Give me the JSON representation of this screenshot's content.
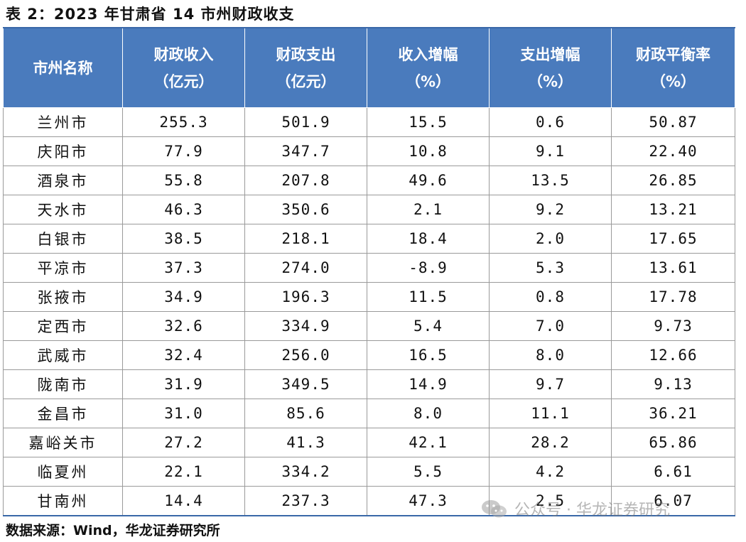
{
  "title": "表 2：2023 年甘肃省 14 市州财政收支",
  "headers": [
    {
      "line1": "市州名称",
      "line2": ""
    },
    {
      "line1": "财政收入",
      "line2": "（亿元）"
    },
    {
      "line1": "财政支出",
      "line2": "（亿元）"
    },
    {
      "line1": "收入增幅",
      "line2": "（%）"
    },
    {
      "line1": "支出增幅",
      "line2": "（%）"
    },
    {
      "line1": "财政平衡率",
      "line2": "（%）"
    }
  ],
  "rows": [
    {
      "city": "兰州市",
      "income": "255.3",
      "expense": "501.9",
      "income_growth": "15.5",
      "expense_growth": "0.6",
      "balance_rate": "50.87"
    },
    {
      "city": "庆阳市",
      "income": "77.9",
      "expense": "347.7",
      "income_growth": "10.8",
      "expense_growth": "9.1",
      "balance_rate": "22.40"
    },
    {
      "city": "酒泉市",
      "income": "55.8",
      "expense": "207.8",
      "income_growth": "49.6",
      "expense_growth": "13.5",
      "balance_rate": "26.85"
    },
    {
      "city": "天水市",
      "income": "46.3",
      "expense": "350.6",
      "income_growth": "2.1",
      "expense_growth": "9.2",
      "balance_rate": "13.21"
    },
    {
      "city": "白银市",
      "income": "38.5",
      "expense": "218.1",
      "income_growth": "18.4",
      "expense_growth": "2.0",
      "balance_rate": "17.65"
    },
    {
      "city": "平凉市",
      "income": "37.3",
      "expense": "274.0",
      "income_growth": "-8.9",
      "expense_growth": "5.3",
      "balance_rate": "13.61"
    },
    {
      "city": "张掖市",
      "income": "34.9",
      "expense": "196.3",
      "income_growth": "11.5",
      "expense_growth": "0.8",
      "balance_rate": "17.78"
    },
    {
      "city": "定西市",
      "income": "32.6",
      "expense": "334.9",
      "income_growth": "5.4",
      "expense_growth": "7.0",
      "balance_rate": "9.73"
    },
    {
      "city": "武威市",
      "income": "32.4",
      "expense": "256.0",
      "income_growth": "16.5",
      "expense_growth": "8.0",
      "balance_rate": "12.66"
    },
    {
      "city": "陇南市",
      "income": "31.9",
      "expense": "349.5",
      "income_growth": "14.9",
      "expense_growth": "9.7",
      "balance_rate": "9.13"
    },
    {
      "city": "金昌市",
      "income": "31.0",
      "expense": "85.6",
      "income_growth": "8.0",
      "expense_growth": "11.1",
      "balance_rate": "36.21"
    },
    {
      "city": "嘉峪关市",
      "income": "27.2",
      "expense": "41.3",
      "income_growth": "42.1",
      "expense_growth": "28.2",
      "balance_rate": "65.86"
    },
    {
      "city": "临夏州",
      "income": "22.1",
      "expense": "334.2",
      "income_growth": "5.5",
      "expense_growth": "4.2",
      "balance_rate": "6.61"
    },
    {
      "city": "甘南州",
      "income": "14.4",
      "expense": "237.3",
      "income_growth": "47.3",
      "expense_growth": "2.5",
      "balance_rate": "6.07"
    }
  ],
  "source": "数据来源：Wind，华龙证券研究所",
  "watermark": {
    "text": "公众号 · 华龙证券研究",
    "icon": "wechat-icon"
  },
  "colors": {
    "header_bg": "#4a7bbd",
    "header_text": "#ffffff",
    "grid": "#9a9a9a"
  }
}
